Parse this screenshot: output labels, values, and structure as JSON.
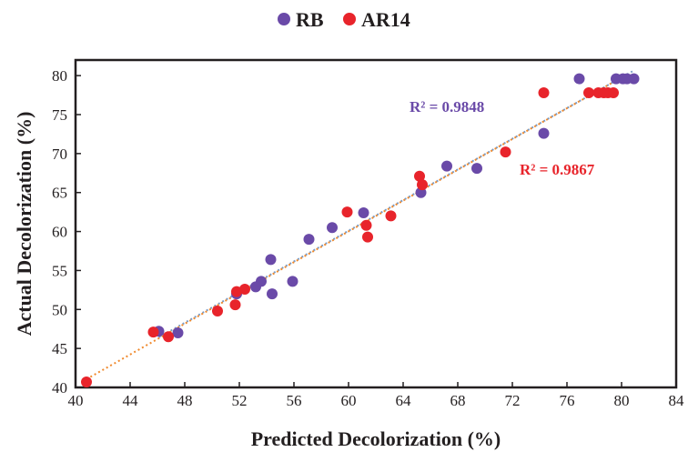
{
  "chart_data": {
    "type": "scatter",
    "xlabel": "Predicted Decolorization (%)",
    "ylabel": "Actual Decolorization (%)",
    "xlim": [
      40,
      84
    ],
    "ylim": [
      40,
      82
    ],
    "x_ticks": [
      40,
      44,
      48,
      52,
      56,
      60,
      64,
      68,
      72,
      76,
      80,
      84
    ],
    "y_ticks": [
      40,
      45,
      50,
      55,
      60,
      65,
      70,
      75,
      80
    ],
    "grid": false,
    "legend_position": "top-center",
    "series": [
      {
        "name": "RB",
        "color": "#6a4aa8",
        "r2_label": "R² = 0.9848",
        "trendline_color": "#7a9cc6",
        "points": [
          [
            46.1,
            47.2
          ],
          [
            47.5,
            47.0
          ],
          [
            51.8,
            52.0
          ],
          [
            53.2,
            52.9
          ],
          [
            53.6,
            53.6
          ],
          [
            54.3,
            56.4
          ],
          [
            54.4,
            52.0
          ],
          [
            55.9,
            53.6
          ],
          [
            57.1,
            59.0
          ],
          [
            58.8,
            60.5
          ],
          [
            61.1,
            62.4
          ],
          [
            65.3,
            65.0
          ],
          [
            67.2,
            68.4
          ],
          [
            69.4,
            68.1
          ],
          [
            74.3,
            72.6
          ],
          [
            76.9,
            79.6
          ],
          [
            79.6,
            79.6
          ],
          [
            80.1,
            79.6
          ],
          [
            80.4,
            79.6
          ],
          [
            80.9,
            79.6
          ]
        ]
      },
      {
        "name": "AR14",
        "color": "#e8242b",
        "r2_label": "R² = 0.9867",
        "trendline_color": "#f08a2e",
        "points": [
          [
            40.8,
            40.7
          ],
          [
            45.7,
            47.1
          ],
          [
            46.8,
            46.5
          ],
          [
            50.4,
            49.8
          ],
          [
            51.7,
            50.6
          ],
          [
            51.8,
            52.3
          ],
          [
            52.4,
            52.6
          ],
          [
            59.9,
            62.5
          ],
          [
            61.3,
            60.8
          ],
          [
            61.4,
            59.3
          ],
          [
            63.1,
            62.0
          ],
          [
            65.2,
            67.1
          ],
          [
            65.4,
            66.0
          ],
          [
            71.5,
            70.2
          ],
          [
            74.3,
            77.8
          ],
          [
            77.6,
            77.8
          ],
          [
            78.3,
            77.8
          ],
          [
            78.7,
            77.8
          ],
          [
            79.0,
            77.8
          ],
          [
            79.4,
            77.8
          ]
        ]
      }
    ]
  }
}
